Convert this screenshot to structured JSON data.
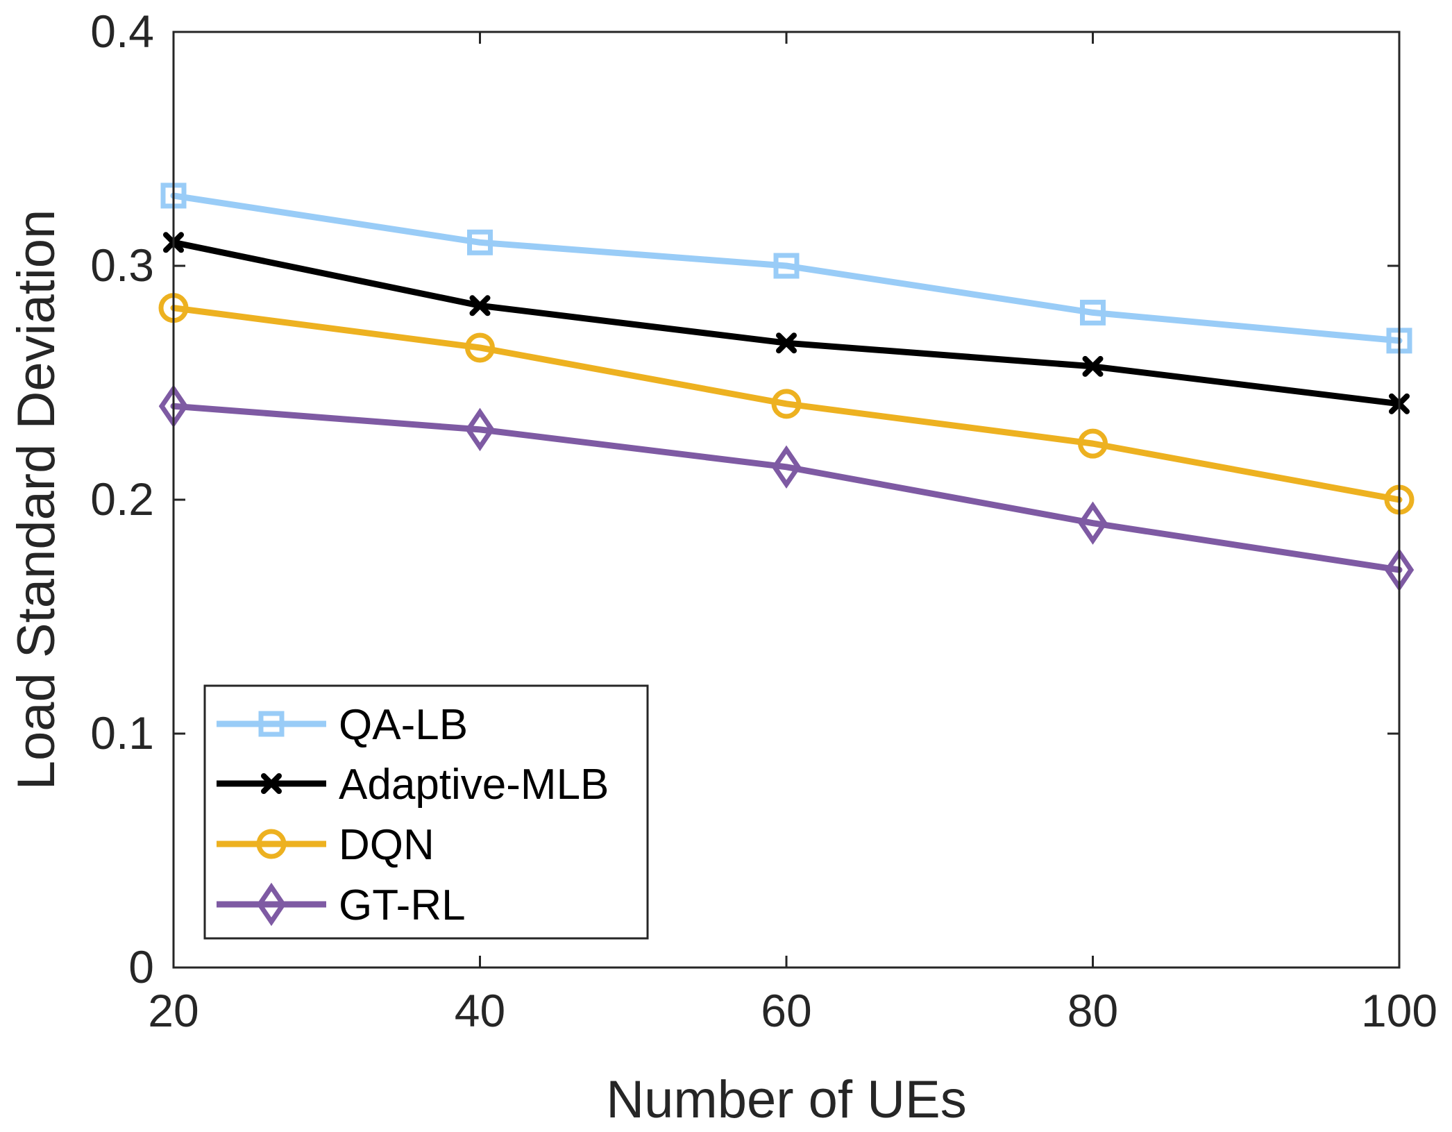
{
  "chart_data": {
    "type": "line",
    "title": "",
    "xlabel": "Number of UEs",
    "ylabel": "Load Standard Deviation",
    "x": [
      20,
      40,
      60,
      80,
      100
    ],
    "xlim": [
      20,
      100
    ],
    "ylim": [
      0,
      0.4
    ],
    "xticks": [
      "20",
      "40",
      "60",
      "80",
      "100"
    ],
    "yticks": [
      "0",
      "0.1",
      "0.2",
      "0.3",
      "0.4"
    ],
    "grid": false,
    "legend_position": "bottom-left",
    "series": [
      {
        "name": "QA-LB",
        "marker": "square",
        "color": "#99ccf7",
        "values": [
          0.33,
          0.31,
          0.3,
          0.28,
          0.268
        ]
      },
      {
        "name": "Adaptive-MLB",
        "marker": "x",
        "color": "#000000",
        "values": [
          0.31,
          0.283,
          0.267,
          0.257,
          0.241
        ]
      },
      {
        "name": "DQN",
        "marker": "circle",
        "color": "#edb120",
        "values": [
          0.282,
          0.265,
          0.241,
          0.224,
          0.2
        ]
      },
      {
        "name": "GT-RL",
        "marker": "diamond",
        "color": "#7e5aa3",
        "values": [
          0.24,
          0.23,
          0.214,
          0.19,
          0.17
        ]
      }
    ]
  }
}
